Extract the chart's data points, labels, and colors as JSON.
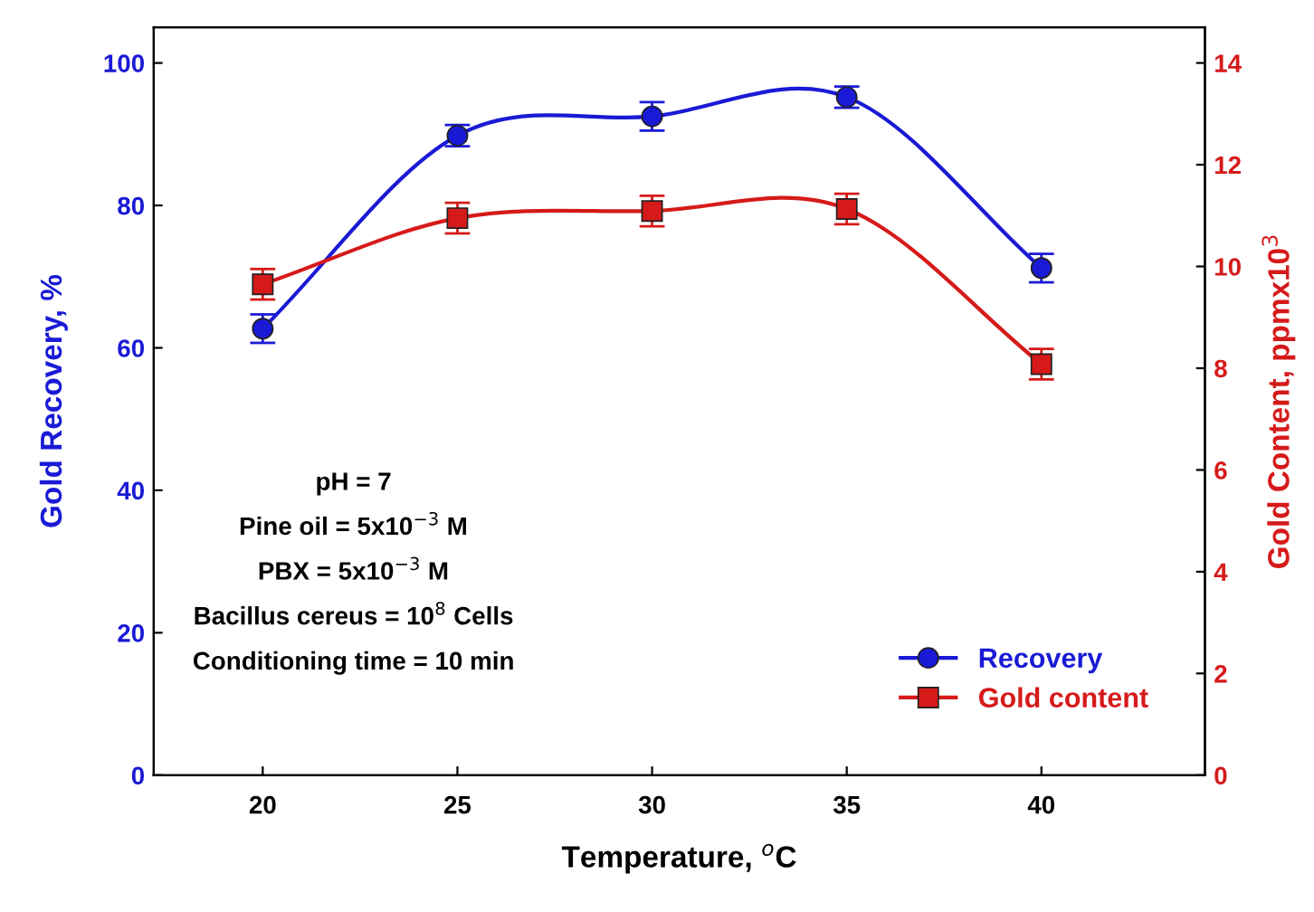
{
  "chart_data": {
    "type": "line",
    "xlabel": "Temperature, $^{o}$C",
    "ylabel": "Gold Recovery, %",
    "y2label": "Gold Content, ppmx10$^{3}$",
    "x": [
      20,
      25,
      30,
      35,
      40
    ],
    "xlim": [
      17.2,
      44.2
    ],
    "xticks": [
      20,
      25,
      30,
      35,
      40
    ],
    "ylim": [
      0,
      105
    ],
    "yticks": [
      0,
      20,
      40,
      60,
      80,
      100
    ],
    "y2lim": [
      0,
      14.7
    ],
    "y2ticks": [
      0,
      2,
      4,
      6,
      8,
      10,
      12,
      14
    ],
    "series": [
      {
        "name": "Recovery",
        "color": "#1a1ad6",
        "marker": "circle",
        "values": [
          62.7,
          89.8,
          92.5,
          95.2,
          71.2
        ],
        "errors": [
          2,
          1.5,
          2,
          1.5,
          2
        ]
      },
      {
        "name": "Gold content",
        "color": "#d61a1a",
        "marker": "square",
        "axis": "y2",
        "values": [
          9.65,
          10.95,
          11.09,
          11.13,
          8.08
        ],
        "errors": [
          0.3,
          0.3,
          0.3,
          0.3,
          0.3
        ]
      }
    ],
    "annotations": [
      "pH = 7",
      "Pine oil = 5x10$^{−3}$ M",
      "PBX = 5x10$^{−3}$ M",
      "Bacillus cereus = 10$^{8}$ Cells",
      "Conditioning time = 10 min"
    ],
    "legend": "bottom right",
    "grid": false,
    "line_style": "solid"
  }
}
